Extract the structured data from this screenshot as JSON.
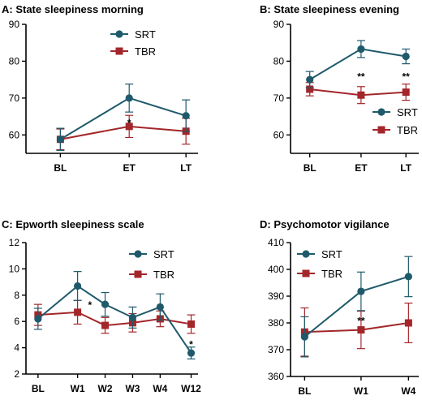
{
  "colors": {
    "SRT": "#1f5a6b",
    "TBR": "#a3262a",
    "axis": "#000000"
  },
  "chart_data": [
    {
      "type": "line",
      "title": "A: State sleepiness morning",
      "categories": [
        "BL",
        "ET",
        "LT"
      ],
      "ylim": [
        55,
        90
      ],
      "yticks": [
        60,
        70,
        80,
        90
      ],
      "grid": false,
      "legend": "top-right",
      "series": [
        {
          "name": "SRT",
          "values": [
            58.8,
            70.0,
            65.2
          ],
          "err": [
            3.0,
            3.8,
            4.3
          ]
        },
        {
          "name": "TBR",
          "values": [
            58.8,
            62.3,
            61.0
          ],
          "err": [
            2.8,
            3.0,
            3.5
          ]
        }
      ],
      "annotations": [
        {
          "text": "*",
          "category": "ET",
          "y": 63.5
        }
      ]
    },
    {
      "type": "line",
      "title": "B: State sleepiness evening",
      "categories": [
        "BL",
        "ET",
        "LT"
      ],
      "ylim": [
        55,
        90
      ],
      "yticks": [
        60,
        70,
        80,
        90
      ],
      "grid": false,
      "legend": "right",
      "series": [
        {
          "name": "SRT",
          "values": [
            75.0,
            83.3,
            81.3
          ],
          "err": [
            2.2,
            2.3,
            2.0
          ]
        },
        {
          "name": "TBR",
          "values": [
            72.4,
            70.8,
            71.6
          ],
          "err": [
            1.8,
            2.3,
            2.2
          ]
        }
      ],
      "annotations": [
        {
          "text": "**",
          "category": "ET",
          "y": 76.0
        },
        {
          "text": "**",
          "category": "LT",
          "y": 76.0
        }
      ]
    },
    {
      "type": "line",
      "title": "C: Epworth sleepiness scale",
      "categories": [
        "BL",
        "W1",
        "W2",
        "W3",
        "W4",
        "W12"
      ],
      "ylim": [
        2,
        12
      ],
      "yticks": [
        2,
        4,
        6,
        8,
        10,
        12
      ],
      "grid": false,
      "legend": "top-right",
      "series": [
        {
          "name": "SRT",
          "values": [
            6.2,
            8.7,
            7.3,
            6.3,
            7.1,
            3.6
          ],
          "err": [
            0.8,
            1.1,
            0.9,
            0.8,
            1.0,
            0.45
          ]
        },
        {
          "name": "TBR",
          "values": [
            6.5,
            6.7,
            5.7,
            5.9,
            6.2,
            5.8
          ],
          "err": [
            0.8,
            0.9,
            0.6,
            0.7,
            0.6,
            0.7
          ]
        }
      ],
      "annotations": [
        {
          "text": "*",
          "category": "W1",
          "y": 7.3,
          "dx": 0.45
        },
        {
          "text": "*",
          "category": "W12",
          "y": 4.3
        }
      ]
    },
    {
      "type": "line",
      "title": "D: Psychomotor vigilance",
      "categories": [
        "BL",
        "W1",
        "W4"
      ],
      "ylim": [
        360,
        410
      ],
      "yticks": [
        360,
        370,
        380,
        390,
        400,
        410
      ],
      "grid": false,
      "legend": "top-left",
      "series": [
        {
          "name": "SRT",
          "values": [
            374.8,
            391.8,
            397.3
          ],
          "err": [
            7.5,
            7.2,
            7.5
          ]
        },
        {
          "name": "TBR",
          "values": [
            376.6,
            377.4,
            380.0
          ],
          "err": [
            9.0,
            7.0,
            7.4
          ]
        }
      ],
      "annotations": [
        {
          "text": "**",
          "category": "W1",
          "y": 381.0
        }
      ]
    }
  ]
}
